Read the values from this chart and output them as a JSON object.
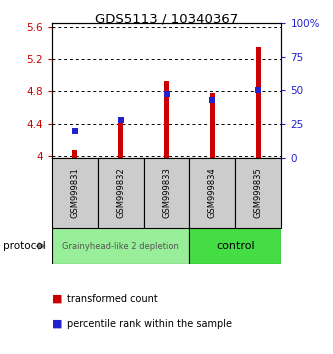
{
  "title": "GDS5113 / 10340367",
  "samples": [
    "GSM999831",
    "GSM999832",
    "GSM999833",
    "GSM999834",
    "GSM999835"
  ],
  "transformed_counts": [
    4.07,
    4.43,
    4.93,
    4.78,
    5.35
  ],
  "percentile_ranks": [
    20,
    28,
    47,
    43,
    50
  ],
  "ylim_left": [
    3.98,
    5.65
  ],
  "ylim_right": [
    0,
    100
  ],
  "yticks_left": [
    4.0,
    4.4,
    4.8,
    5.2,
    5.6
  ],
  "ytick_labels_left": [
    "4",
    "4.4",
    "4.8",
    "5.2",
    "5.6"
  ],
  "yticks_right": [
    0,
    25,
    50,
    75,
    100
  ],
  "ytick_labels_right": [
    "0",
    "25",
    "50",
    "75",
    "100%"
  ],
  "bar_color": "#cc0000",
  "point_color": "#2222cc",
  "groups": [
    {
      "label": "Grainyhead-like 2 depletion",
      "color": "#99ee99",
      "n_samples": 3
    },
    {
      "label": "control",
      "color": "#44dd44",
      "n_samples": 2
    }
  ],
  "protocol_label": "protocol",
  "legend_bar_label": "transformed count",
  "legend_point_label": "percentile rank within the sample",
  "background_color": "#ffffff",
  "sample_box_color": "#cccccc"
}
